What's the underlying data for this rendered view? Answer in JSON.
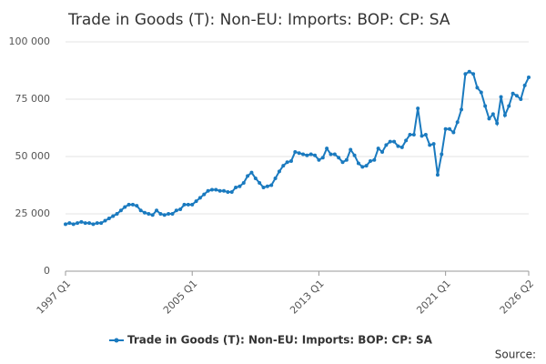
{
  "chart_data": {
    "type": "line",
    "title": "Trade in Goods (T): Non-EU: Imports: BOP: CP: SA",
    "source": "Source:",
    "categories": [
      "1997 Q1",
      null,
      null,
      null,
      null,
      null,
      null,
      null,
      null,
      null,
      null,
      null,
      null,
      null,
      null,
      null,
      null,
      null,
      null,
      null,
      null,
      null,
      null,
      null,
      null,
      null,
      null,
      null,
      null,
      null,
      null,
      null,
      "2005 Q1",
      null,
      null,
      null,
      null,
      null,
      null,
      null,
      null,
      null,
      null,
      null,
      null,
      null,
      null,
      null,
      null,
      null,
      null,
      null,
      null,
      null,
      null,
      null,
      null,
      null,
      null,
      null,
      null,
      null,
      null,
      null,
      "2013 Q1",
      null,
      null,
      null,
      null,
      null,
      null,
      null,
      null,
      null,
      null,
      null,
      null,
      null,
      null,
      null,
      null,
      null,
      null,
      null,
      null,
      null,
      null,
      null,
      null,
      null,
      null,
      null,
      null,
      null,
      null,
      null,
      "2021 Q1",
      null,
      null,
      null,
      null,
      null,
      null,
      null,
      null,
      null,
      null,
      null,
      null,
      null,
      null,
      null,
      null,
      null,
      null,
      null,
      null,
      "2026 Q2"
    ],
    "series": [
      {
        "name": "Trade in Goods (T): Non-EU: Imports: BOP: CP: SA",
        "color": "#1a7abf",
        "values": [
          20500,
          21000,
          20500,
          21000,
          21500,
          21000,
          21000,
          20500,
          21000,
          21000,
          22000,
          23000,
          24000,
          25000,
          26500,
          28000,
          29000,
          29000,
          28500,
          26500,
          25500,
          25000,
          24500,
          26500,
          25000,
          24500,
          25000,
          25000,
          26500,
          27000,
          29000,
          29000,
          29000,
          30500,
          32000,
          33500,
          35000,
          35500,
          35500,
          35000,
          35000,
          34500,
          34500,
          36500,
          37000,
          38500,
          41500,
          43000,
          40500,
          38500,
          36500,
          37000,
          37500,
          40500,
          43500,
          46000,
          47500,
          48000,
          52000,
          51500,
          51000,
          50500,
          51000,
          50500,
          48500,
          49500,
          53500,
          51000,
          51000,
          49500,
          47500,
          48500,
          53000,
          50500,
          47000,
          45500,
          46000,
          48000,
          48500,
          53500,
          52000,
          55000,
          56500,
          56500,
          54500,
          54000,
          57000,
          59500,
          59500,
          71000,
          59000,
          59500,
          55000,
          55500,
          42000,
          51000,
          62000,
          62000,
          60500,
          65000,
          70500,
          86000,
          87000,
          86000,
          80000,
          78000,
          72000,
          66500,
          68500,
          64500,
          76000,
          68000,
          72000,
          77500,
          76500,
          75000,
          81000,
          84500
        ]
      }
    ],
    "ylim": [
      0,
      100000
    ],
    "yticks": [
      0,
      {
        "value": 25000,
        "label": "25 000"
      },
      {
        "value": 50000,
        "label": "50 000"
      },
      {
        "value": 75000,
        "label": "75 000"
      },
      {
        "value": 100000,
        "label": "100 000"
      }
    ],
    "grid": true
  }
}
